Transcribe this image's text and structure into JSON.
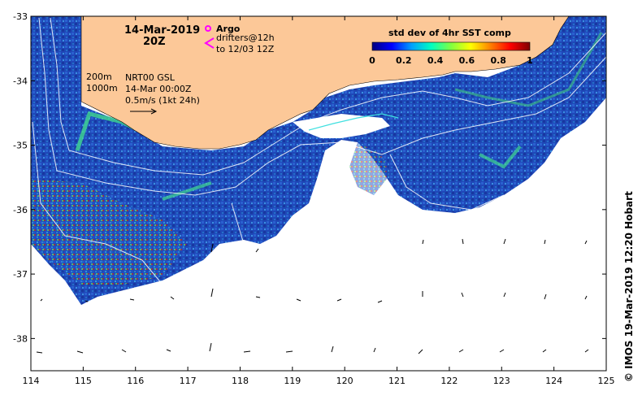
{
  "title": {
    "date": "14-Mar-2019",
    "time": "20Z"
  },
  "legend": {
    "argo_label": "Argo",
    "drifter_line1": "drifters@12h",
    "drifter_line2": "to 12/03 12Z",
    "argo_color": "#ff00ff",
    "drifter_color": "#ff00ff"
  },
  "isobaths": {
    "line1": "200m",
    "line2": "1000m"
  },
  "current_info": {
    "line1": "NRT00 GSL",
    "line2": "14-Mar 00:00Z",
    "line3": "0.5m/s (1kt 24h)"
  },
  "colorbar": {
    "title": "std dev of 4hr SST comp",
    "ticks": [
      "0",
      "0.2",
      "0.4",
      "0.6",
      "0.8",
      "1"
    ],
    "colors": [
      "#000080",
      "#0000ff",
      "#00a0ff",
      "#00ffc0",
      "#80ff40",
      "#ffff00",
      "#ff8000",
      "#ff0000",
      "#800000"
    ]
  },
  "axes": {
    "x_ticks": [
      "114",
      "115",
      "116",
      "117",
      "118",
      "119",
      "120",
      "121",
      "122",
      "123",
      "124",
      "125"
    ],
    "y_ticks": [
      "-33",
      "-34",
      "-35",
      "-36",
      "-37",
      "-38"
    ],
    "x_range": [
      114,
      125
    ],
    "y_range": [
      -38.5,
      -33
    ]
  },
  "credit": "© IMOS 19-Mar-2019 12:20 Hobart",
  "colors": {
    "land": "#fcc898",
    "sea_dark": "#1a3aa0",
    "sea_mid": "#2a5cd0",
    "sea_light": "#3a8ae0"
  }
}
